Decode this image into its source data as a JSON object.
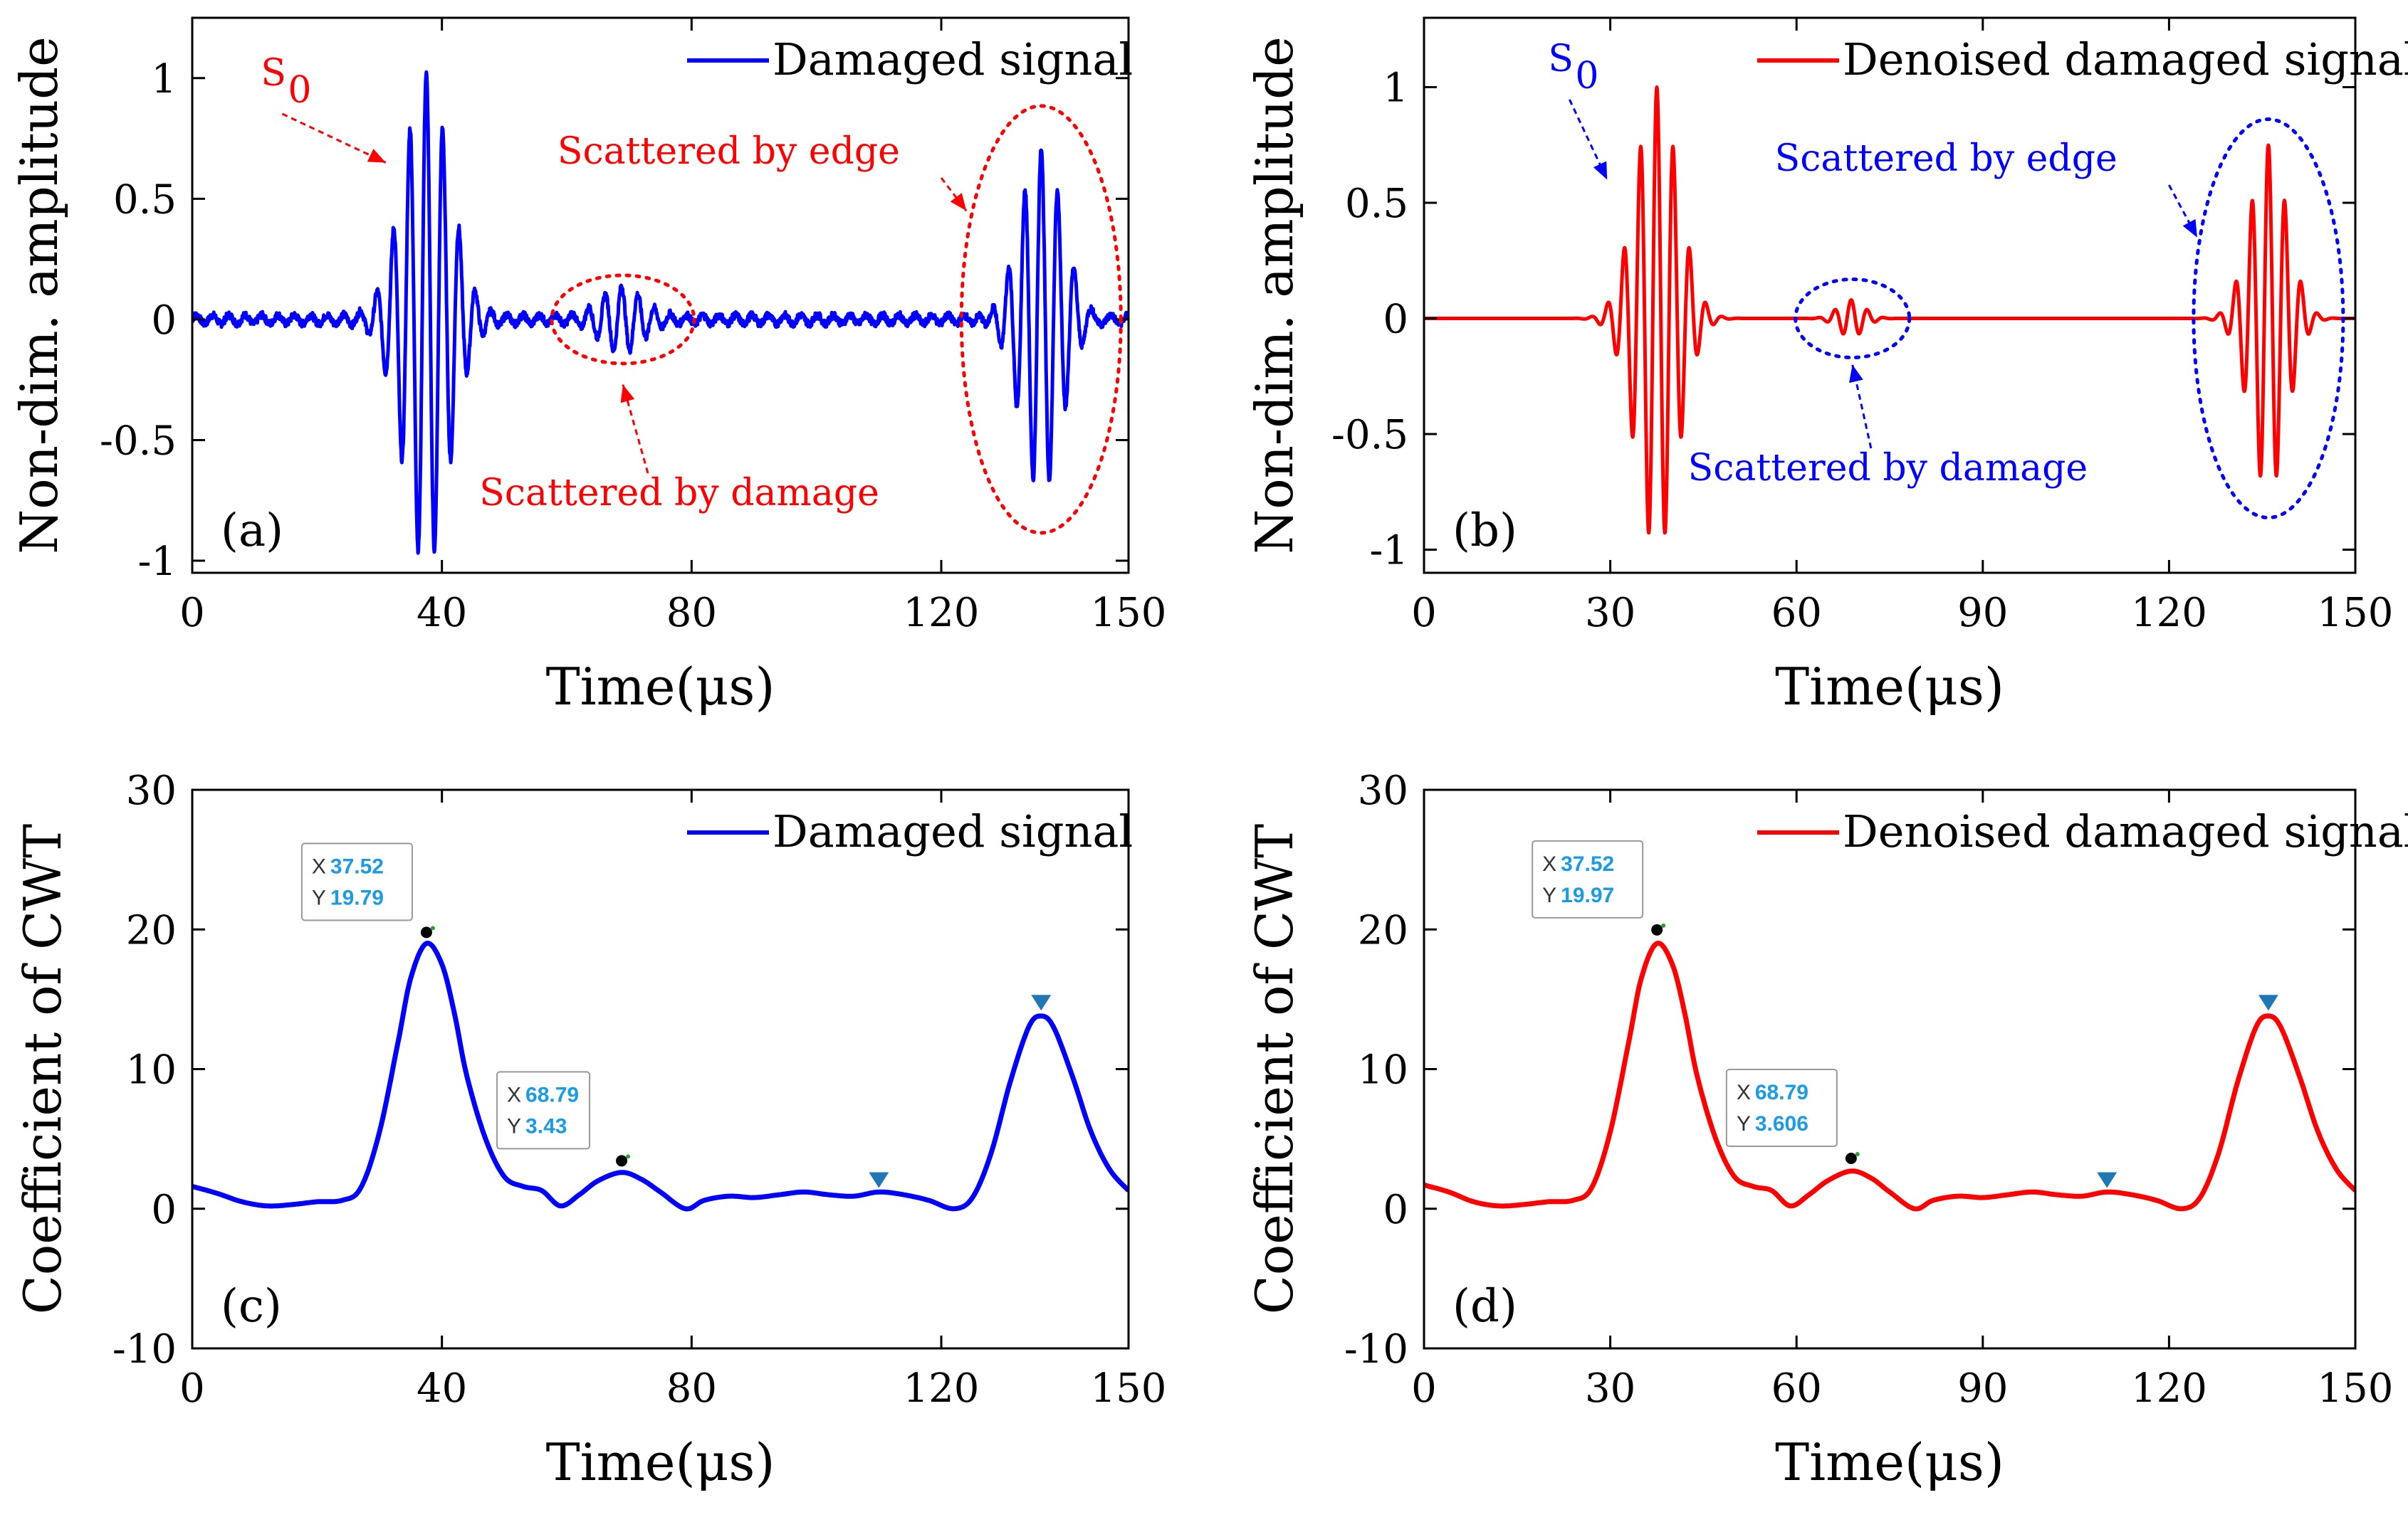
{
  "chart_data": [
    {
      "id": "a",
      "type": "line",
      "panel_label": "(a)",
      "xlabel": "Time(μs)",
      "ylabel": "Non-dim. amplitude",
      "xlim": [
        0,
        150
      ],
      "ylim": [
        -1.05,
        1.25
      ],
      "xticks": [
        0,
        40,
        80,
        120,
        150
      ],
      "yticks": [
        1,
        0.5,
        0,
        -0.5,
        -1
      ],
      "ytick_labels": [
        "1",
        "0.5",
        "0",
        "-0.5",
        "-1"
      ],
      "legend": "Damaged signal",
      "legend_position": "top-right",
      "color": "#0000ff",
      "annotations": {
        "s0": "S",
        "s0_sub": "0",
        "edge": "Scattered by edge",
        "damage": "Scattered by damage",
        "annotation_color": "#ff0000"
      },
      "series": {
        "name": "Damaged signal",
        "packets": [
          {
            "center": 37.5,
            "width": 5.2,
            "amp": 1.0,
            "freq": 0.38
          },
          {
            "center": 68.8,
            "width": 4.5,
            "amp": 0.12,
            "freq": 0.38
          },
          {
            "center": 136.0,
            "width": 4.8,
            "amp": 0.72,
            "freq": 0.38
          }
        ],
        "noise": 0.015
      }
    },
    {
      "id": "b",
      "type": "line",
      "panel_label": "(b)",
      "xlabel": "Time(μs)",
      "ylabel": "Non-dim. amplitude",
      "xlim": [
        0,
        150
      ],
      "ylim": [
        -1.1,
        1.3
      ],
      "xticks": [
        0,
        30,
        60,
        90,
        120,
        150
      ],
      "yticks": [
        1,
        0.5,
        0,
        -0.5,
        -1
      ],
      "ytick_labels": [
        "1",
        "0.5",
        "0",
        "-0.5",
        "-1"
      ],
      "legend": "Denoised damaged signal",
      "legend_position": "top-right",
      "color": "#ff0000",
      "annotations": {
        "s0": "S",
        "s0_sub": "0",
        "edge": "Scattered by edge",
        "damage": "Scattered by damage",
        "annotation_color": "#0000ff"
      },
      "series": {
        "name": "Denoised damaged signal",
        "packets": [
          {
            "center": 37.5,
            "width": 4.8,
            "amp": 1.0,
            "freq": 0.38
          },
          {
            "center": 68.8,
            "width": 3.0,
            "amp": 0.08,
            "freq": 0.38
          },
          {
            "center": 136.0,
            "width": 4.2,
            "amp": 0.75,
            "freq": 0.38
          }
        ],
        "noise": 0
      }
    },
    {
      "id": "c",
      "type": "line",
      "panel_label": "(c)",
      "xlabel": "Time(μs)",
      "ylabel": "Coefficient of CWT",
      "xlim": [
        0,
        150
      ],
      "ylim": [
        -10,
        30
      ],
      "xticks": [
        0,
        40,
        80,
        120,
        150
      ],
      "yticks": [
        30,
        20,
        10,
        0,
        -10
      ],
      "ytick_labels": [
        "30",
        "20",
        "10",
        "0",
        "-10"
      ],
      "legend": "Damaged signal",
      "legend_position": "top-right",
      "color": "#0000ff",
      "series": {
        "name": "Damaged signal",
        "x": [
          0,
          4,
          8,
          12,
          16,
          20,
          24,
          27,
          30,
          33,
          35,
          37.5,
          40,
          42,
          44,
          47,
          50,
          53,
          56,
          59,
          62,
          65,
          68.8,
          72,
          75,
          79,
          82,
          86,
          90,
          94,
          98,
          102,
          106,
          110,
          114,
          118,
          122,
          125,
          128,
          131,
          134,
          136,
          138,
          141,
          144,
          147,
          150
        ],
        "y": [
          1.6,
          1.1,
          0.5,
          0.2,
          0.3,
          0.5,
          0.6,
          1.5,
          5.5,
          12.0,
          16.5,
          19.0,
          17.5,
          14.0,
          9.5,
          5.0,
          2.3,
          1.6,
          1.3,
          0.2,
          1.0,
          2.0,
          2.6,
          2.1,
          1.2,
          0.0,
          0.6,
          0.9,
          0.8,
          1.0,
          1.2,
          1.0,
          0.9,
          1.2,
          1.0,
          0.6,
          0.0,
          0.8,
          4.0,
          9.0,
          13.0,
          13.8,
          13.0,
          9.5,
          5.5,
          2.8,
          1.3
        ]
      },
      "datatips": [
        {
          "x_label": "X",
          "x_value": "37.52",
          "y_label": "Y",
          "y_value": "19.79",
          "at_x": 37.52,
          "at_y": 19.79
        },
        {
          "x_label": "X",
          "x_value": "68.79",
          "y_label": "Y",
          "y_value": "3.43",
          "at_x": 68.79,
          "at_y": 3.43
        }
      ],
      "markers": [
        {
          "x": 110,
          "y": 2.0
        },
        {
          "x": 136,
          "y": 14.7
        }
      ],
      "marker_color": "#1f77b4"
    },
    {
      "id": "d",
      "type": "line",
      "panel_label": "(d)",
      "xlabel": "Time(μs)",
      "ylabel": "Coefficient of CWT",
      "xlim": [
        0,
        150
      ],
      "ylim": [
        -10,
        30
      ],
      "xticks": [
        0,
        30,
        60,
        90,
        120,
        150
      ],
      "yticks": [
        30,
        20,
        10,
        0,
        -10
      ],
      "ytick_labels": [
        "30",
        "20",
        "10",
        "0",
        "-10"
      ],
      "legend": "Denoised damaged signal",
      "legend_position": "top-right",
      "color": "#ff0000",
      "series": {
        "name": "Denoised damaged signal",
        "x": [
          0,
          4,
          8,
          12,
          16,
          20,
          24,
          27,
          30,
          33,
          35,
          37.5,
          40,
          42,
          44,
          47,
          50,
          53,
          56,
          59,
          62,
          65,
          68.8,
          72,
          75,
          79,
          82,
          86,
          90,
          94,
          98,
          102,
          106,
          110,
          114,
          118,
          122,
          125,
          128,
          131,
          134,
          136,
          138,
          141,
          144,
          147,
          150
        ],
        "y": [
          1.7,
          1.2,
          0.5,
          0.2,
          0.3,
          0.5,
          0.6,
          1.5,
          5.5,
          12.0,
          16.5,
          19.0,
          17.5,
          14.0,
          9.5,
          5.0,
          2.3,
          1.6,
          1.3,
          0.2,
          1.0,
          2.0,
          2.7,
          2.2,
          1.2,
          0.0,
          0.6,
          0.9,
          0.8,
          1.0,
          1.2,
          1.0,
          0.9,
          1.2,
          1.0,
          0.6,
          0.0,
          0.8,
          4.0,
          9.0,
          13.0,
          13.8,
          13.0,
          9.5,
          5.5,
          2.8,
          1.3
        ]
      },
      "datatips": [
        {
          "x_label": "X",
          "x_value": "37.52",
          "y_label": "Y",
          "y_value": "19.97",
          "at_x": 37.52,
          "at_y": 19.97
        },
        {
          "x_label": "X",
          "x_value": "68.79",
          "y_label": "Y",
          "y_value": "3.606",
          "at_x": 68.79,
          "at_y": 3.606
        }
      ],
      "markers": [
        {
          "x": 110,
          "y": 2.0
        },
        {
          "x": 136,
          "y": 14.7
        }
      ],
      "marker_color": "#1f77b4"
    }
  ]
}
